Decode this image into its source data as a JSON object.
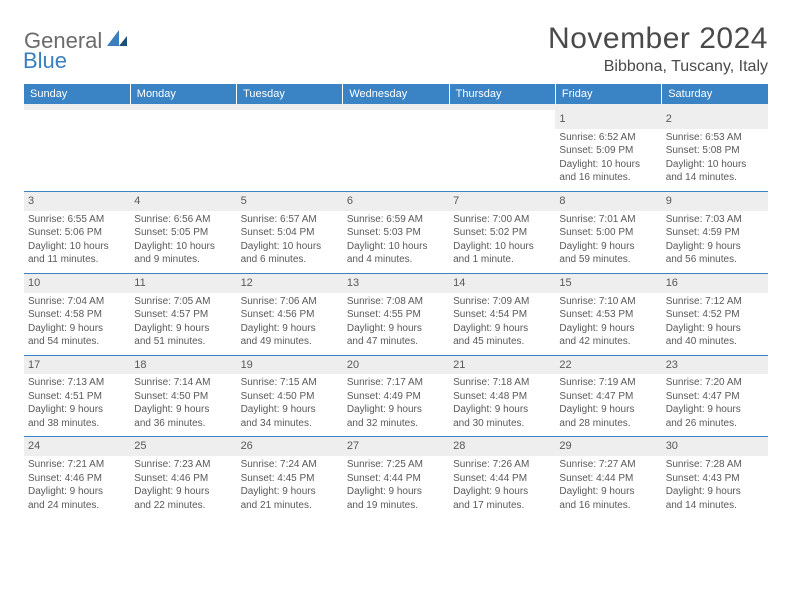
{
  "brand": {
    "part1": "General",
    "part2": "Blue"
  },
  "title": "November 2024",
  "location": "Bibbona, Tuscany, Italy",
  "colors": {
    "header_bg": "#3a83c4",
    "header_text": "#ffffff",
    "daynum_bg": "#eeeeee",
    "border": "#3a83c4",
    "body_text": "#595959",
    "title_text": "#4a4a4a",
    "logo_gray": "#6b6b6b",
    "logo_blue": "#3a7fbf"
  },
  "dayNames": [
    "Sunday",
    "Monday",
    "Tuesday",
    "Wednesday",
    "Thursday",
    "Friday",
    "Saturday"
  ],
  "weeks": [
    [
      {
        "day": "",
        "lines": [
          "",
          "",
          "",
          ""
        ]
      },
      {
        "day": "",
        "lines": [
          "",
          "",
          "",
          ""
        ]
      },
      {
        "day": "",
        "lines": [
          "",
          "",
          "",
          ""
        ]
      },
      {
        "day": "",
        "lines": [
          "",
          "",
          "",
          ""
        ]
      },
      {
        "day": "",
        "lines": [
          "",
          "",
          "",
          ""
        ]
      },
      {
        "day": "1",
        "lines": [
          "Sunrise: 6:52 AM",
          "Sunset: 5:09 PM",
          "Daylight: 10 hours",
          "and 16 minutes."
        ]
      },
      {
        "day": "2",
        "lines": [
          "Sunrise: 6:53 AM",
          "Sunset: 5:08 PM",
          "Daylight: 10 hours",
          "and 14 minutes."
        ]
      }
    ],
    [
      {
        "day": "3",
        "lines": [
          "Sunrise: 6:55 AM",
          "Sunset: 5:06 PM",
          "Daylight: 10 hours",
          "and 11 minutes."
        ]
      },
      {
        "day": "4",
        "lines": [
          "Sunrise: 6:56 AM",
          "Sunset: 5:05 PM",
          "Daylight: 10 hours",
          "and 9 minutes."
        ]
      },
      {
        "day": "5",
        "lines": [
          "Sunrise: 6:57 AM",
          "Sunset: 5:04 PM",
          "Daylight: 10 hours",
          "and 6 minutes."
        ]
      },
      {
        "day": "6",
        "lines": [
          "Sunrise: 6:59 AM",
          "Sunset: 5:03 PM",
          "Daylight: 10 hours",
          "and 4 minutes."
        ]
      },
      {
        "day": "7",
        "lines": [
          "Sunrise: 7:00 AM",
          "Sunset: 5:02 PM",
          "Daylight: 10 hours",
          "and 1 minute."
        ]
      },
      {
        "day": "8",
        "lines": [
          "Sunrise: 7:01 AM",
          "Sunset: 5:00 PM",
          "Daylight: 9 hours",
          "and 59 minutes."
        ]
      },
      {
        "day": "9",
        "lines": [
          "Sunrise: 7:03 AM",
          "Sunset: 4:59 PM",
          "Daylight: 9 hours",
          "and 56 minutes."
        ]
      }
    ],
    [
      {
        "day": "10",
        "lines": [
          "Sunrise: 7:04 AM",
          "Sunset: 4:58 PM",
          "Daylight: 9 hours",
          "and 54 minutes."
        ]
      },
      {
        "day": "11",
        "lines": [
          "Sunrise: 7:05 AM",
          "Sunset: 4:57 PM",
          "Daylight: 9 hours",
          "and 51 minutes."
        ]
      },
      {
        "day": "12",
        "lines": [
          "Sunrise: 7:06 AM",
          "Sunset: 4:56 PM",
          "Daylight: 9 hours",
          "and 49 minutes."
        ]
      },
      {
        "day": "13",
        "lines": [
          "Sunrise: 7:08 AM",
          "Sunset: 4:55 PM",
          "Daylight: 9 hours",
          "and 47 minutes."
        ]
      },
      {
        "day": "14",
        "lines": [
          "Sunrise: 7:09 AM",
          "Sunset: 4:54 PM",
          "Daylight: 9 hours",
          "and 45 minutes."
        ]
      },
      {
        "day": "15",
        "lines": [
          "Sunrise: 7:10 AM",
          "Sunset: 4:53 PM",
          "Daylight: 9 hours",
          "and 42 minutes."
        ]
      },
      {
        "day": "16",
        "lines": [
          "Sunrise: 7:12 AM",
          "Sunset: 4:52 PM",
          "Daylight: 9 hours",
          "and 40 minutes."
        ]
      }
    ],
    [
      {
        "day": "17",
        "lines": [
          "Sunrise: 7:13 AM",
          "Sunset: 4:51 PM",
          "Daylight: 9 hours",
          "and 38 minutes."
        ]
      },
      {
        "day": "18",
        "lines": [
          "Sunrise: 7:14 AM",
          "Sunset: 4:50 PM",
          "Daylight: 9 hours",
          "and 36 minutes."
        ]
      },
      {
        "day": "19",
        "lines": [
          "Sunrise: 7:15 AM",
          "Sunset: 4:50 PM",
          "Daylight: 9 hours",
          "and 34 minutes."
        ]
      },
      {
        "day": "20",
        "lines": [
          "Sunrise: 7:17 AM",
          "Sunset: 4:49 PM",
          "Daylight: 9 hours",
          "and 32 minutes."
        ]
      },
      {
        "day": "21",
        "lines": [
          "Sunrise: 7:18 AM",
          "Sunset: 4:48 PM",
          "Daylight: 9 hours",
          "and 30 minutes."
        ]
      },
      {
        "day": "22",
        "lines": [
          "Sunrise: 7:19 AM",
          "Sunset: 4:47 PM",
          "Daylight: 9 hours",
          "and 28 minutes."
        ]
      },
      {
        "day": "23",
        "lines": [
          "Sunrise: 7:20 AM",
          "Sunset: 4:47 PM",
          "Daylight: 9 hours",
          "and 26 minutes."
        ]
      }
    ],
    [
      {
        "day": "24",
        "lines": [
          "Sunrise: 7:21 AM",
          "Sunset: 4:46 PM",
          "Daylight: 9 hours",
          "and 24 minutes."
        ]
      },
      {
        "day": "25",
        "lines": [
          "Sunrise: 7:23 AM",
          "Sunset: 4:46 PM",
          "Daylight: 9 hours",
          "and 22 minutes."
        ]
      },
      {
        "day": "26",
        "lines": [
          "Sunrise: 7:24 AM",
          "Sunset: 4:45 PM",
          "Daylight: 9 hours",
          "and 21 minutes."
        ]
      },
      {
        "day": "27",
        "lines": [
          "Sunrise: 7:25 AM",
          "Sunset: 4:44 PM",
          "Daylight: 9 hours",
          "and 19 minutes."
        ]
      },
      {
        "day": "28",
        "lines": [
          "Sunrise: 7:26 AM",
          "Sunset: 4:44 PM",
          "Daylight: 9 hours",
          "and 17 minutes."
        ]
      },
      {
        "day": "29",
        "lines": [
          "Sunrise: 7:27 AM",
          "Sunset: 4:44 PM",
          "Daylight: 9 hours",
          "and 16 minutes."
        ]
      },
      {
        "day": "30",
        "lines": [
          "Sunrise: 7:28 AM",
          "Sunset: 4:43 PM",
          "Daylight: 9 hours",
          "and 14 minutes."
        ]
      }
    ]
  ]
}
